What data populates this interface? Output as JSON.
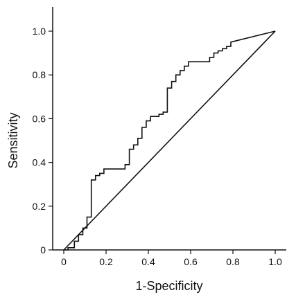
{
  "chart_data": {
    "type": "line",
    "title": "",
    "xlabel": "1-Specificity",
    "ylabel": "Sensitivity",
    "xlim": [
      0,
      1
    ],
    "ylim": [
      0,
      1
    ],
    "grid": false,
    "x_ticks": [
      {
        "value": 0,
        "label": "0"
      },
      {
        "value": 0.2,
        "label": "0.2"
      },
      {
        "value": 0.4,
        "label": "0.4"
      },
      {
        "value": 0.6,
        "label": "0.6"
      },
      {
        "value": 0.8,
        "label": "0.8"
      },
      {
        "value": 1.0,
        "label": "1.0"
      }
    ],
    "y_ticks": [
      {
        "value": 0,
        "label": "0"
      },
      {
        "value": 0.2,
        "label": "0.2"
      },
      {
        "value": 0.4,
        "label": "0.4"
      },
      {
        "value": 0.6,
        "label": "0.6"
      },
      {
        "value": 0.8,
        "label": "0.8"
      },
      {
        "value": 1.0,
        "label": "1.0"
      }
    ],
    "series": [
      {
        "kind": "roc-step",
        "color": "#111111",
        "points": [
          [
            0,
            0
          ],
          [
            0.02,
            0
          ],
          [
            0.02,
            0.01
          ],
          [
            0.05,
            0.01
          ],
          [
            0.05,
            0.04
          ],
          [
            0.07,
            0.04
          ],
          [
            0.07,
            0.07
          ],
          [
            0.09,
            0.07
          ],
          [
            0.09,
            0.1
          ],
          [
            0.11,
            0.1
          ],
          [
            0.11,
            0.15
          ],
          [
            0.13,
            0.15
          ],
          [
            0.13,
            0.32
          ],
          [
            0.15,
            0.32
          ],
          [
            0.15,
            0.34
          ],
          [
            0.17,
            0.34
          ],
          [
            0.17,
            0.35
          ],
          [
            0.19,
            0.35
          ],
          [
            0.19,
            0.37
          ],
          [
            0.29,
            0.37
          ],
          [
            0.29,
            0.39
          ],
          [
            0.31,
            0.39
          ],
          [
            0.31,
            0.46
          ],
          [
            0.33,
            0.46
          ],
          [
            0.33,
            0.48
          ],
          [
            0.35,
            0.48
          ],
          [
            0.35,
            0.51
          ],
          [
            0.37,
            0.51
          ],
          [
            0.37,
            0.56
          ],
          [
            0.39,
            0.56
          ],
          [
            0.39,
            0.59
          ],
          [
            0.41,
            0.59
          ],
          [
            0.41,
            0.61
          ],
          [
            0.45,
            0.61
          ],
          [
            0.45,
            0.62
          ],
          [
            0.47,
            0.62
          ],
          [
            0.47,
            0.63
          ],
          [
            0.49,
            0.63
          ],
          [
            0.49,
            0.74
          ],
          [
            0.51,
            0.74
          ],
          [
            0.51,
            0.77
          ],
          [
            0.53,
            0.77
          ],
          [
            0.53,
            0.8
          ],
          [
            0.55,
            0.8
          ],
          [
            0.55,
            0.82
          ],
          [
            0.57,
            0.82
          ],
          [
            0.57,
            0.84
          ],
          [
            0.59,
            0.84
          ],
          [
            0.59,
            0.86
          ],
          [
            0.69,
            0.86
          ],
          [
            0.69,
            0.88
          ],
          [
            0.71,
            0.88
          ],
          [
            0.71,
            0.9
          ],
          [
            0.73,
            0.9
          ],
          [
            0.73,
            0.91
          ],
          [
            0.75,
            0.91
          ],
          [
            0.75,
            0.92
          ],
          [
            0.77,
            0.92
          ],
          [
            0.77,
            0.93
          ],
          [
            0.79,
            0.93
          ],
          [
            0.79,
            0.95
          ],
          [
            1.0,
            1.0
          ]
        ]
      },
      {
        "kind": "reference-diagonal",
        "color": "#111111",
        "points": [
          [
            0,
            0
          ],
          [
            1,
            1
          ]
        ]
      }
    ]
  }
}
